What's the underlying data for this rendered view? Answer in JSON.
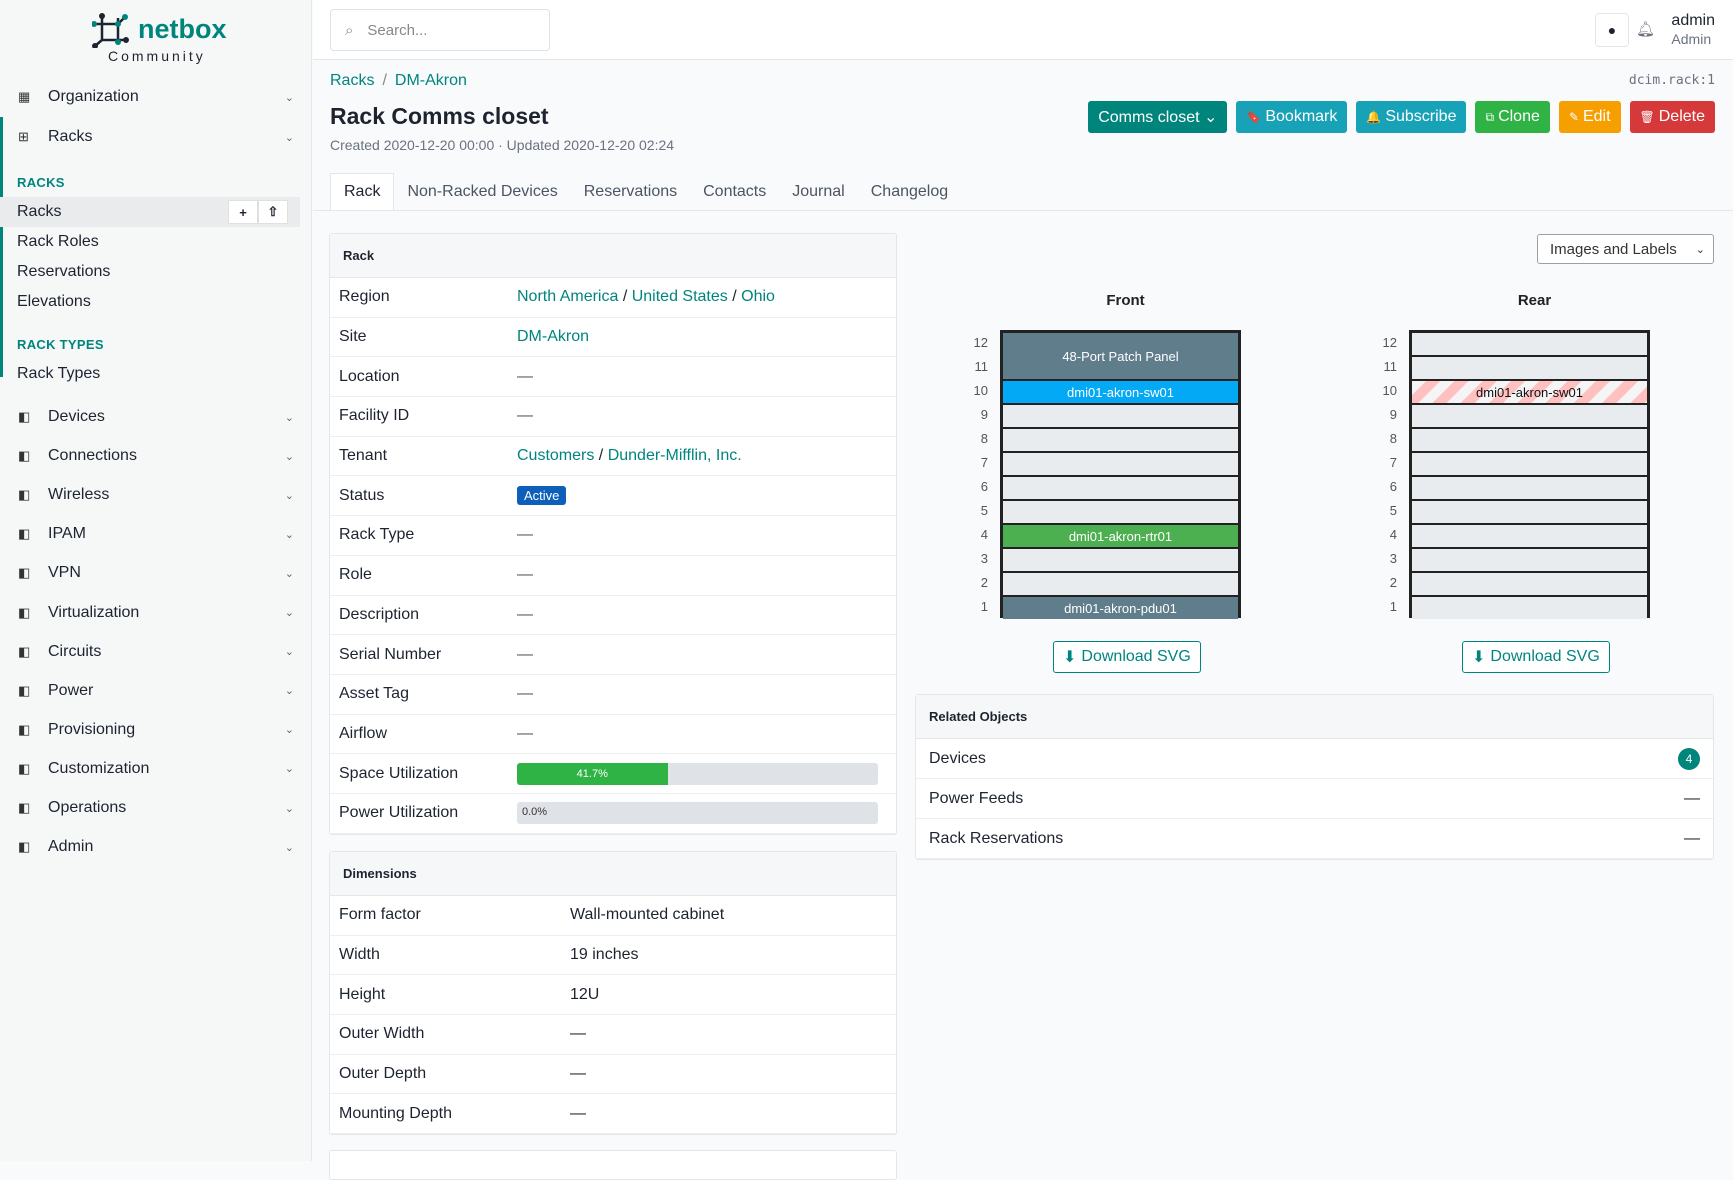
{
  "brand": {
    "name": "netbox",
    "edition": "Community"
  },
  "sidebar": {
    "groups": [
      {
        "label": "Organization",
        "icon": "building-icon"
      },
      {
        "label": "Racks",
        "icon": "rack-icon"
      }
    ],
    "racks_section": "RACKS",
    "racks_items": [
      "Racks",
      "Rack Roles",
      "Reservations",
      "Elevations"
    ],
    "rack_types_section": "RACK TYPES",
    "rack_types_items": [
      "Rack Types"
    ],
    "menus": [
      {
        "label": "Devices",
        "icon": "server-icon"
      },
      {
        "label": "Connections",
        "icon": "plug-icon"
      },
      {
        "label": "Wireless",
        "icon": "wifi-icon"
      },
      {
        "label": "IPAM",
        "icon": "ip-icon"
      },
      {
        "label": "VPN",
        "icon": "vpn-icon"
      },
      {
        "label": "Virtualization",
        "icon": "monitor-icon"
      },
      {
        "label": "Circuits",
        "icon": "circuit-icon"
      },
      {
        "label": "Power",
        "icon": "power-icon"
      },
      {
        "label": "Provisioning",
        "icon": "provisioning-icon"
      },
      {
        "label": "Customization",
        "icon": "customization-icon"
      },
      {
        "label": "Operations",
        "icon": "operations-icon"
      },
      {
        "label": "Admin",
        "icon": "users-icon"
      }
    ]
  },
  "topbar": {
    "search_placeholder": "Search...",
    "user": "admin",
    "role": "Admin"
  },
  "breadcrumb": [
    "Racks",
    "DM-Akron"
  ],
  "object_id": "dcim.rack:1",
  "title": "Rack Comms closet",
  "meta": "Created 2020-12-20 00:00 · Updated 2020-12-20 02:24",
  "actions": [
    {
      "label": "Comms closet ⌄",
      "color": "#00857d"
    },
    {
      "label": "Bookmark",
      "icon": "bookmark-icon",
      "glyph": "🔖",
      "color": "#17a2b8"
    },
    {
      "label": "Subscribe",
      "icon": "bell-plus-icon",
      "glyph": "🔔",
      "color": "#17a2b8"
    },
    {
      "label": "Clone",
      "icon": "clone-icon",
      "glyph": "⧉",
      "color": "#2fb344"
    },
    {
      "label": "Edit",
      "icon": "pencil-icon",
      "glyph": "✎",
      "color": "#f59f00"
    },
    {
      "label": "Delete",
      "icon": "trash-icon",
      "glyph": "🗑",
      "color": "#d63939"
    }
  ],
  "tabs": [
    "Rack",
    "Non-Racked Devices",
    "Reservations",
    "Contacts",
    "Journal",
    "Changelog"
  ],
  "rack_card": {
    "title": "Rack",
    "region": [
      "North America",
      "United States",
      "Ohio"
    ],
    "site": "DM-Akron",
    "tenant": [
      "Customers",
      "Dunder-Mifflin, Inc."
    ],
    "status": "Active",
    "status_color": "#0d5fba",
    "labels": [
      "Region",
      "Site",
      "Location",
      "Facility ID",
      "Tenant",
      "Status",
      "Rack Type",
      "Role",
      "Description",
      "Serial Number",
      "Asset Tag",
      "Airflow",
      "Space Utilization",
      "Power Utilization"
    ],
    "dash": "—",
    "space_utilization": 41.7,
    "space_utilization_label": "41.7%",
    "power_utilization": 0.0,
    "power_utilization_label": "0.0%"
  },
  "dimensions": {
    "title": "Dimensions",
    "rows": [
      {
        "k": "Form factor",
        "v": "Wall-mounted cabinet"
      },
      {
        "k": "Width",
        "v": "19 inches"
      },
      {
        "k": "Height",
        "v": "12U"
      },
      {
        "k": "Outer Width",
        "v": "—"
      },
      {
        "k": "Outer Depth",
        "v": "—"
      },
      {
        "k": "Mounting Depth",
        "v": "—"
      }
    ]
  },
  "elevation": {
    "view_select": "Images and Labels",
    "units": [
      12,
      11,
      10,
      9,
      8,
      7,
      6,
      5,
      4,
      3,
      2,
      1
    ],
    "front_label": "Front",
    "rear_label": "Rear",
    "download": "Download SVG",
    "front": [
      {
        "name": "48-Port Patch Panel",
        "top": 12,
        "height": 2,
        "color": "#607d8b"
      },
      {
        "name": "dmi01-akron-sw01",
        "top": 10,
        "height": 1,
        "color": "#03a9f4"
      },
      {
        "name": "dmi01-akron-rtr01",
        "top": 4,
        "height": 1,
        "color": "#4caf50"
      },
      {
        "name": "dmi01-akron-pdu01",
        "top": 1,
        "height": 1,
        "color": "#607d8b"
      }
    ],
    "rear": [
      {
        "name": "dmi01-akron-sw01",
        "top": 10,
        "height": 1,
        "color": "#ffc0c0",
        "pattern": "striped"
      }
    ]
  },
  "related": {
    "title": "Related Objects",
    "rows": [
      {
        "label": "Devices",
        "count": "4"
      },
      {
        "label": "Power Feeds",
        "count": "—"
      },
      {
        "label": "Rack Reservations",
        "count": "—"
      }
    ]
  }
}
